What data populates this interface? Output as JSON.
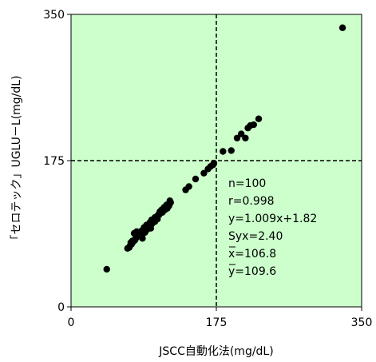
{
  "chart_data": {
    "type": "scatter",
    "title": "",
    "xlabel": "JSCC自動化法(mg/dL)",
    "ylabel": "「セロテック」UGLU－L(mg/dL)",
    "xlim": [
      0,
      350
    ],
    "ylim": [
      0,
      350
    ],
    "x_ticks": [
      "0",
      "175",
      "350"
    ],
    "y_ticks": [
      "0",
      "175",
      "350"
    ],
    "reference_lines": {
      "x": 175,
      "y": 175
    },
    "plot_background": "#ccffcc",
    "marker_color": "#000000",
    "grid": false,
    "stats": {
      "n": "n=100",
      "r": "r=0.998",
      "regression": "y=1.009x+1.82",
      "syx": "Syx=2.40",
      "xbar": "x=106.8",
      "ybar": "y=109.6"
    },
    "points": [
      [
        43,
        45
      ],
      [
        68,
        70
      ],
      [
        70,
        71
      ],
      [
        71,
        73
      ],
      [
        73,
        75
      ],
      [
        72,
        77
      ],
      [
        74,
        79
      ],
      [
        75,
        78
      ],
      [
        77,
        80
      ],
      [
        78,
        82
      ],
      [
        79,
        84
      ],
      [
        80,
        86
      ],
      [
        81,
        88
      ],
      [
        82,
        85
      ],
      [
        83,
        89
      ],
      [
        84,
        90
      ],
      [
        85,
        91
      ],
      [
        86,
        87
      ],
      [
        87,
        92
      ],
      [
        88,
        93
      ],
      [
        89,
        95
      ],
      [
        90,
        96
      ],
      [
        91,
        92
      ],
      [
        92,
        97
      ],
      [
        93,
        98
      ],
      [
        94,
        99
      ],
      [
        95,
        100
      ],
      [
        96,
        97
      ],
      [
        97,
        101
      ],
      [
        98,
        103
      ],
      [
        99,
        104
      ],
      [
        100,
        105
      ],
      [
        101,
        102
      ],
      [
        102,
        106
      ],
      [
        103,
        107
      ],
      [
        104,
        108
      ],
      [
        105,
        110
      ],
      [
        106,
        111
      ],
      [
        107,
        112
      ],
      [
        108,
        113
      ],
      [
        109,
        114
      ],
      [
        110,
        115
      ],
      [
        111,
        116
      ],
      [
        112,
        117
      ],
      [
        113,
        118
      ],
      [
        114,
        119
      ],
      [
        115,
        120
      ],
      [
        116,
        121
      ],
      [
        117,
        122
      ],
      [
        118,
        123
      ],
      [
        119,
        124
      ],
      [
        120,
        125
      ],
      [
        76,
        88
      ],
      [
        79,
        90
      ],
      [
        82,
        88
      ],
      [
        85,
        86
      ],
      [
        88,
        95
      ],
      [
        91,
        98
      ],
      [
        94,
        96
      ],
      [
        97,
        104
      ],
      [
        100,
        102
      ],
      [
        103,
        108
      ],
      [
        106,
        110
      ],
      [
        109,
        116
      ],
      [
        112,
        119
      ],
      [
        115,
        122
      ],
      [
        118,
        121
      ],
      [
        86,
        82
      ],
      [
        89,
        89
      ],
      [
        92,
        94
      ],
      [
        95,
        101
      ],
      [
        98,
        100
      ],
      [
        101,
        107
      ],
      [
        104,
        105
      ],
      [
        107,
        114
      ],
      [
        110,
        113
      ],
      [
        113,
        116
      ],
      [
        116,
        118
      ],
      [
        119,
        127
      ],
      [
        96,
        94
      ],
      [
        99,
        102
      ],
      [
        102,
        104
      ],
      [
        138,
        140
      ],
      [
        142,
        144
      ],
      [
        150,
        153
      ],
      [
        160,
        160
      ],
      [
        165,
        165
      ],
      [
        172,
        172
      ],
      [
        168,
        168
      ],
      [
        171,
        170
      ],
      [
        183,
        186
      ],
      [
        193,
        187
      ],
      [
        205,
        207
      ],
      [
        210,
        202
      ],
      [
        216,
        217
      ],
      [
        220,
        218
      ],
      [
        226,
        225
      ],
      [
        200,
        202
      ],
      [
        213,
        214
      ],
      [
        327,
        334
      ]
    ]
  }
}
